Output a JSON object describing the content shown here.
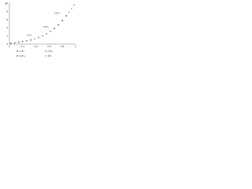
{
  "chart_data": {
    "type": "scatter",
    "y_label": "α",
    "xlim": [
      0,
      1
    ],
    "xticks": [
      0,
      0.2,
      0.4,
      0.6,
      0.8,
      1
    ],
    "ylim": [
      0,
      10
    ],
    "yticks": [
      0,
      2,
      4,
      6,
      8,
      10
    ],
    "grid": false,
    "legend": "bottom",
    "series": [
      {
        "name": "C₂F₆",
        "color": "#3a6fb0",
        "x": [
          0.02,
          0.08,
          0.14,
          0.2,
          0.26,
          0.32
        ],
        "values": [
          0.2,
          0.3,
          0.45,
          0.6,
          0.8,
          1.0
        ]
      },
      {
        "name": "C₃F₈",
        "color": "#5a8fd0",
        "x": [
          0.38,
          0.44,
          0.5,
          0.56,
          0.62
        ],
        "values": [
          1.3,
          1.6,
          2.0,
          2.5,
          3.1
        ]
      },
      {
        "name": "C₄F₁₀",
        "color": "#2a4f90",
        "x": [
          0.68,
          0.74,
          0.8,
          0.86
        ],
        "values": [
          3.8,
          4.7,
          5.7,
          6.9
        ]
      },
      {
        "name": "SF₆",
        "color": "#7aa8e0",
        "x": [
          0.9,
          0.94,
          0.98
        ],
        "values": [
          7.8,
          8.7,
          9.6
        ]
      }
    ],
    "annotations": [
      {
        "text": "C₂F₆",
        "x": 0.3,
        "y": 2.2
      },
      {
        "text": "C₃F₈",
        "x": 0.55,
        "y": 4.2
      },
      {
        "text": "C₄F₁₀",
        "x": 0.72,
        "y": 7.6
      }
    ]
  }
}
